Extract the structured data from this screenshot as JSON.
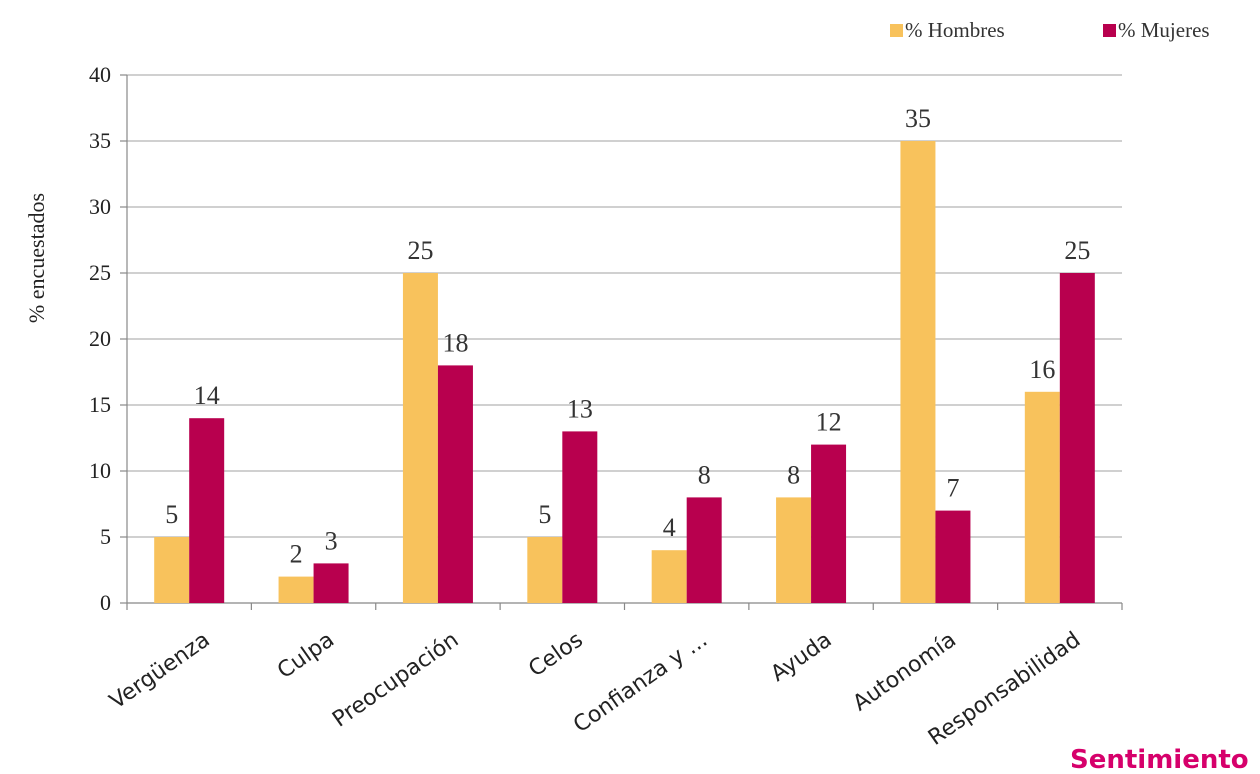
{
  "chart_data": {
    "type": "bar",
    "categories": [
      "Vergüenza",
      "Culpa",
      "Preocupación",
      "Celos",
      "Confianza y ...",
      "Ayuda",
      "Autonomía",
      "Responsabilidad"
    ],
    "series": [
      {
        "name": "% Hombres",
        "values": [
          5,
          2,
          25,
          5,
          4,
          8,
          35,
          16
        ],
        "color": "#f8c25c"
      },
      {
        "name": "% Mujeres",
        "values": [
          14,
          3,
          18,
          13,
          8,
          12,
          7,
          25
        ],
        "color": "#b8004e"
      }
    ],
    "ylabel": "% encuestados",
    "ylim": [
      0,
      40
    ],
    "yticks": [
      0,
      5,
      10,
      15,
      20,
      25,
      30,
      35,
      40
    ],
    "grid": true,
    "legend": "top-right",
    "footer_text": "Sentimiento",
    "footer_color": "#d6006b"
  }
}
